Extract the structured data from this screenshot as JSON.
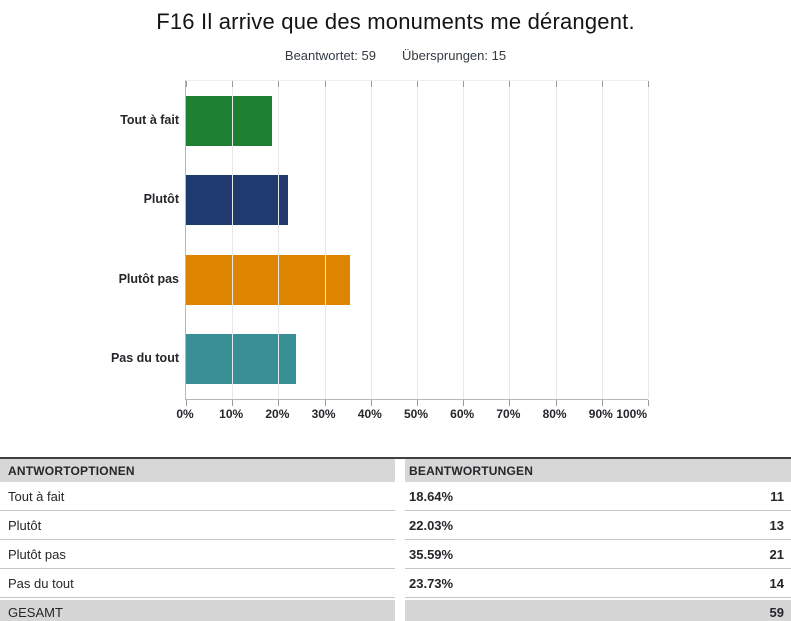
{
  "title": "F16 Il arrive que des monuments me dérangent.",
  "stats": {
    "answered_label": "Beantwortet:",
    "answered_value": "59",
    "skipped_label": "Übersprungen:",
    "skipped_value": "15"
  },
  "chart_data": {
    "type": "bar",
    "orientation": "horizontal",
    "categories": [
      "Tout à fait",
      "Plutôt",
      "Plutôt pas",
      "Pas du tout"
    ],
    "values": [
      18.64,
      22.03,
      35.59,
      23.73
    ],
    "bar_colors": [
      "#1e8032",
      "#1f3a6e",
      "#dd8500",
      "#398f96"
    ],
    "xlim": [
      0,
      100
    ],
    "x_tick_step": 10,
    "x_tick_labels": [
      "0%",
      "10%",
      "20%",
      "30%",
      "40%",
      "50%",
      "60%",
      "70%",
      "80%",
      "90%",
      "100%"
    ],
    "grid": true,
    "legend": false,
    "title": "",
    "xlabel": "",
    "ylabel": ""
  },
  "table": {
    "headers": [
      "ANTWORTOPTIONEN",
      "BEANTWORTUNGEN"
    ],
    "rows": [
      {
        "option": "Tout à fait",
        "percent": "18.64%",
        "count": "11"
      },
      {
        "option": "Plutôt",
        "percent": "22.03%",
        "count": "13"
      },
      {
        "option": "Plutôt pas",
        "percent": "35.59%",
        "count": "21"
      },
      {
        "option": "Pas du tout",
        "percent": "23.73%",
        "count": "14"
      }
    ],
    "total_label": "GESAMT",
    "total_count": "59"
  }
}
